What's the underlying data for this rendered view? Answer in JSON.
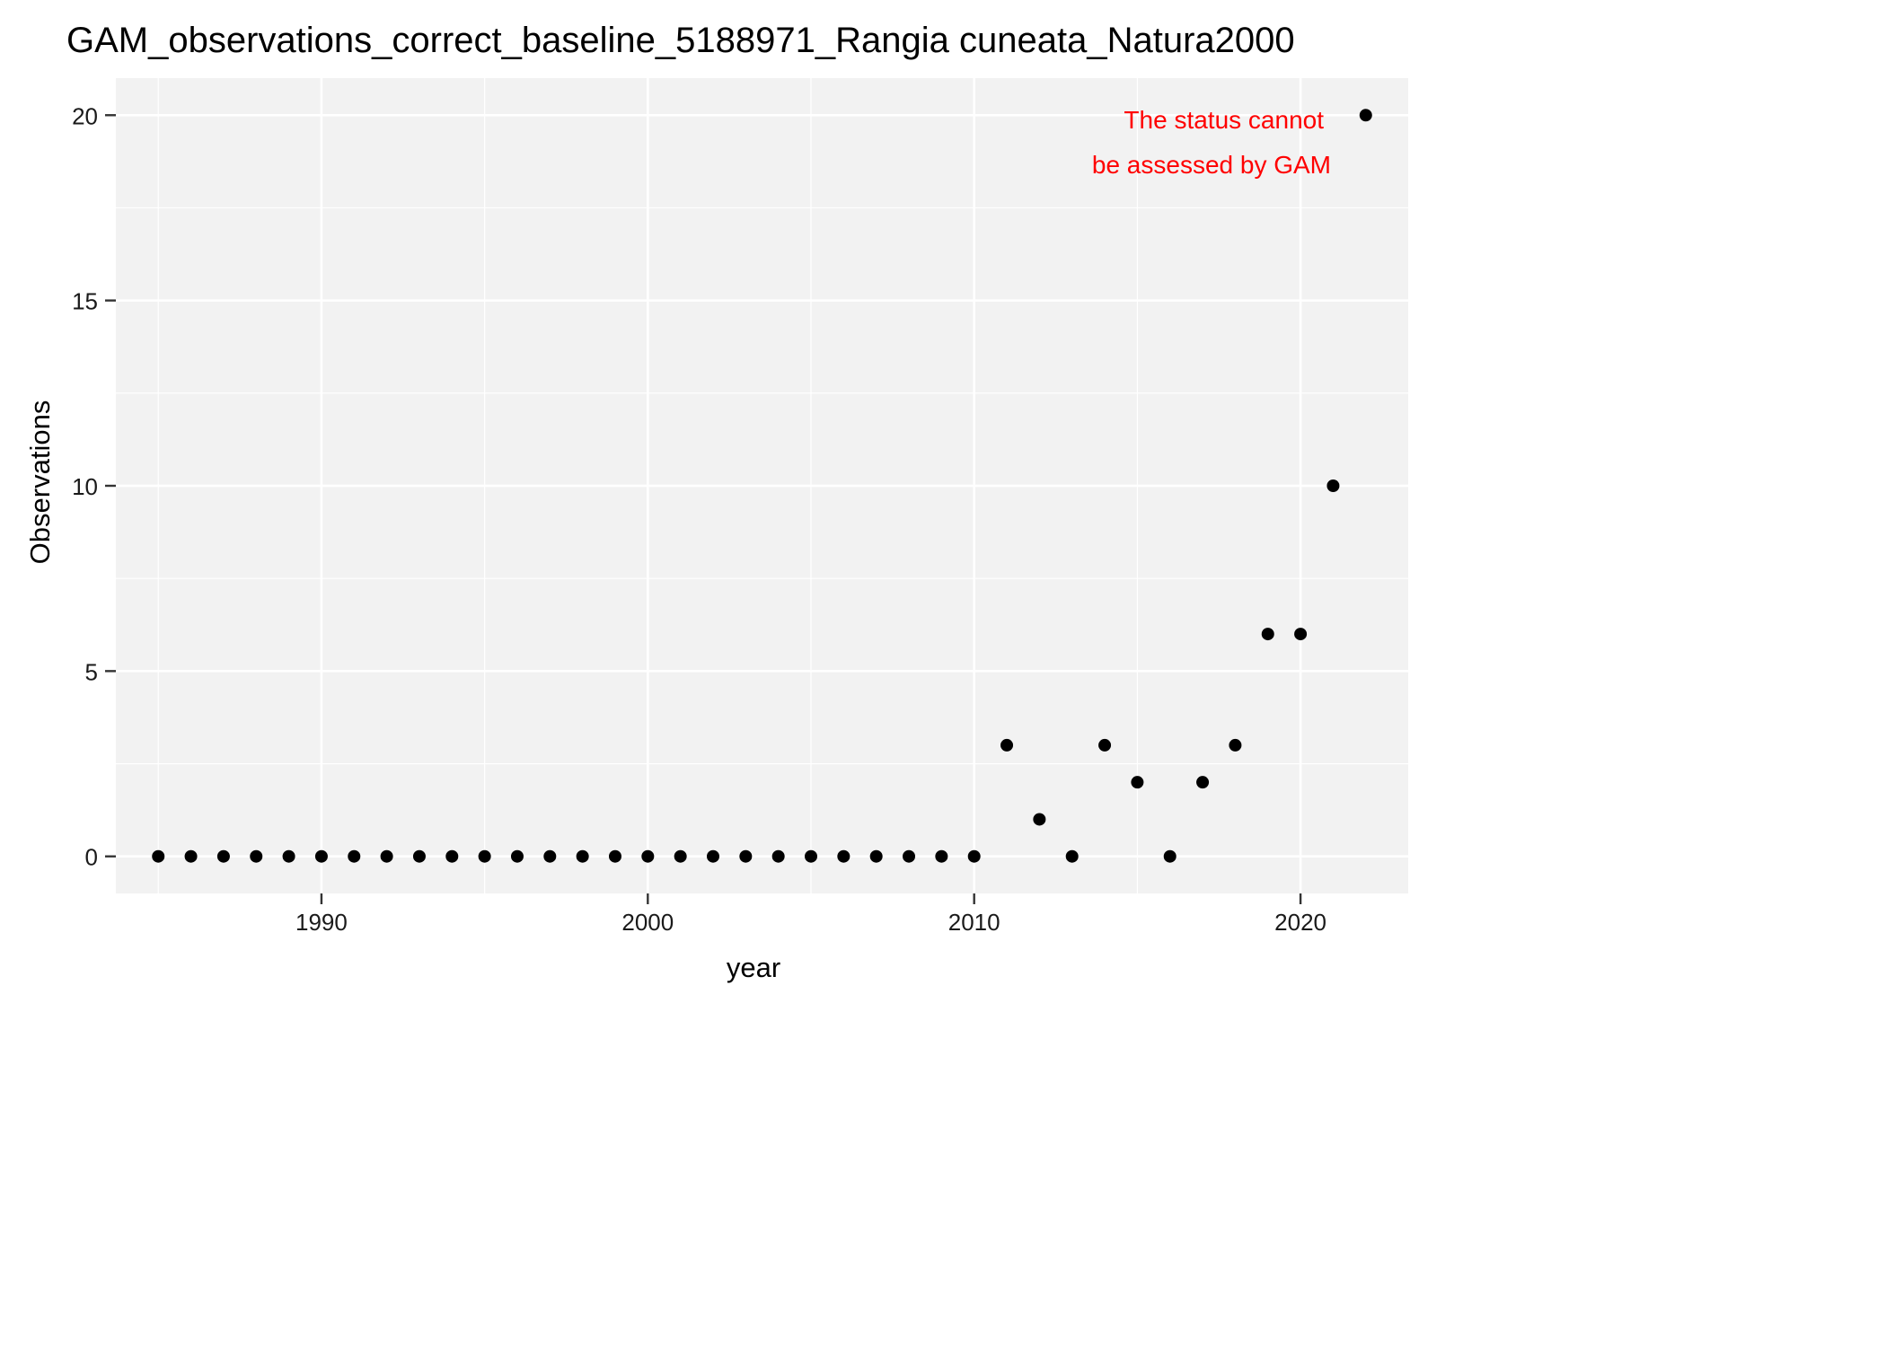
{
  "chart_data": {
    "type": "scatter",
    "title": "GAM_observations_correct_baseline_5188971_Rangia cuneata_Natura2000",
    "xlabel": "year",
    "ylabel": "Observations",
    "xlim": [
      1983.7,
      2023.3
    ],
    "ylim": [
      -1,
      21
    ],
    "x_ticks": [
      1990,
      2000,
      2010,
      2020
    ],
    "y_ticks": [
      0,
      5,
      10,
      15,
      20
    ],
    "grid": true,
    "annotation": {
      "lines": [
        "The status cannot",
        "be assessed by GAM"
      ],
      "color": "#ff0000"
    },
    "panel_color": "#f2f2f2",
    "grid_color": "#ffffff",
    "point_color": "#000000",
    "points": [
      {
        "x": 1985,
        "y": 0
      },
      {
        "x": 1986,
        "y": 0
      },
      {
        "x": 1987,
        "y": 0
      },
      {
        "x": 1988,
        "y": 0
      },
      {
        "x": 1989,
        "y": 0
      },
      {
        "x": 1990,
        "y": 0
      },
      {
        "x": 1991,
        "y": 0
      },
      {
        "x": 1992,
        "y": 0
      },
      {
        "x": 1993,
        "y": 0
      },
      {
        "x": 1994,
        "y": 0
      },
      {
        "x": 1995,
        "y": 0
      },
      {
        "x": 1996,
        "y": 0
      },
      {
        "x": 1997,
        "y": 0
      },
      {
        "x": 1998,
        "y": 0
      },
      {
        "x": 1999,
        "y": 0
      },
      {
        "x": 2000,
        "y": 0
      },
      {
        "x": 2001,
        "y": 0
      },
      {
        "x": 2002,
        "y": 0
      },
      {
        "x": 2003,
        "y": 0
      },
      {
        "x": 2004,
        "y": 0
      },
      {
        "x": 2005,
        "y": 0
      },
      {
        "x": 2006,
        "y": 0
      },
      {
        "x": 2007,
        "y": 0
      },
      {
        "x": 2008,
        "y": 0
      },
      {
        "x": 2009,
        "y": 0
      },
      {
        "x": 2010,
        "y": 0
      },
      {
        "x": 2011,
        "y": 3
      },
      {
        "x": 2012,
        "y": 1
      },
      {
        "x": 2013,
        "y": 0
      },
      {
        "x": 2014,
        "y": 3
      },
      {
        "x": 2015,
        "y": 2
      },
      {
        "x": 2016,
        "y": 0
      },
      {
        "x": 2017,
        "y": 2
      },
      {
        "x": 2018,
        "y": 3
      },
      {
        "x": 2019,
        "y": 6
      },
      {
        "x": 2020,
        "y": 6
      },
      {
        "x": 2021,
        "y": 10
      },
      {
        "x": 2022,
        "y": 20
      }
    ]
  }
}
